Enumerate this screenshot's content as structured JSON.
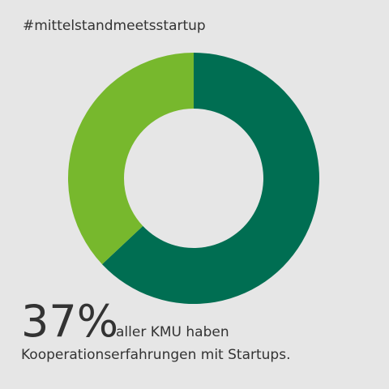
{
  "chart_data": {
    "type": "donut",
    "title": "#mittelstandmeetsstartup",
    "values": [
      63,
      37
    ],
    "value_labels": [
      null,
      "37%"
    ],
    "colors": [
      "#006e52",
      "#77b82d"
    ],
    "caption": [
      "aller KMU haben",
      "Kooperationserfahrungen mit Startups."
    ]
  }
}
